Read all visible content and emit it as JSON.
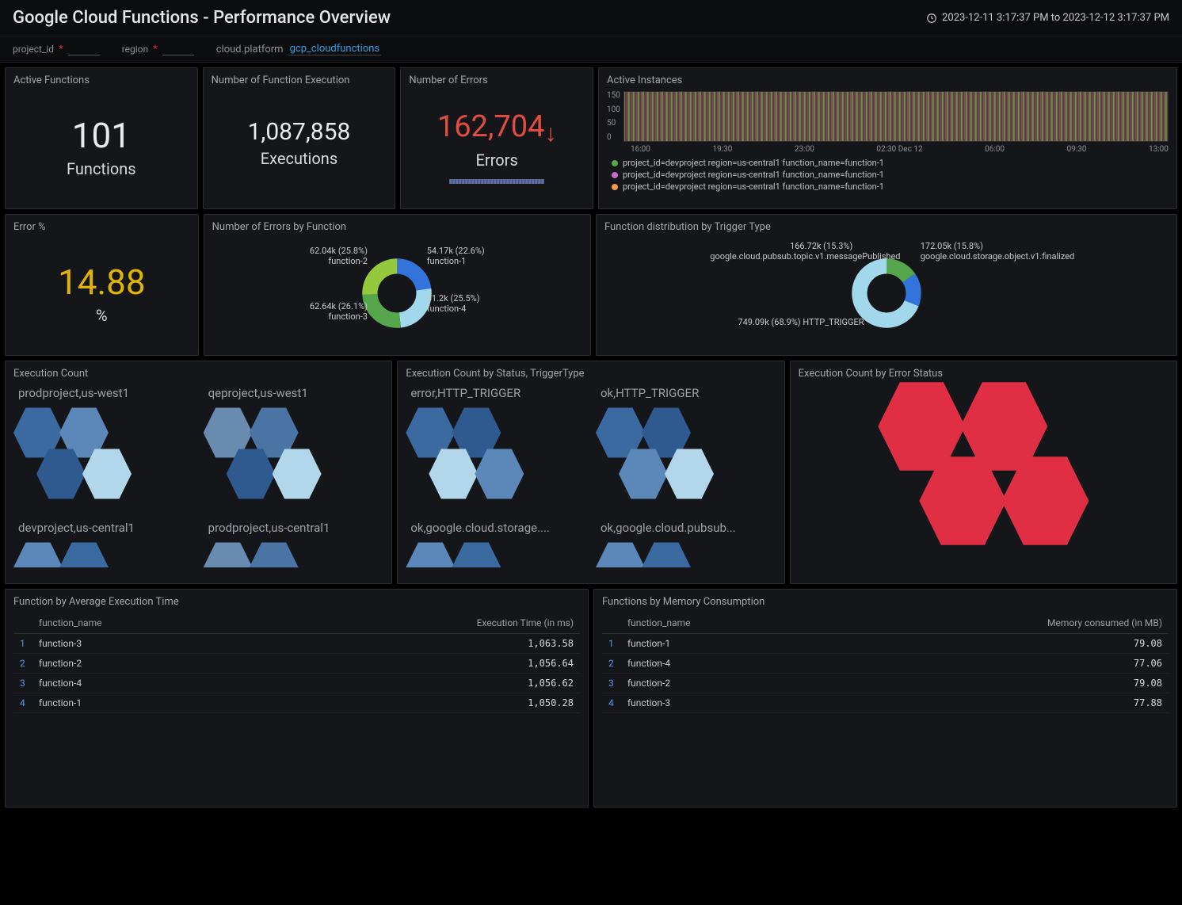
{
  "header": {
    "title": "Google Cloud Functions - Performance Overview",
    "time_range": "2023-12-11 3:17:37 PM to 2023-12-12 3:17:37 PM"
  },
  "filters": {
    "project_id_label": "project_id",
    "region_label": "region",
    "platform_label": "cloud.platform",
    "platform_value": "gcp_cloudfunctions",
    "star": "*"
  },
  "panels": {
    "active_functions": {
      "title": "Active Functions",
      "value": "101",
      "unit": "Functions"
    },
    "executions": {
      "title": "Number of Function Execution",
      "value": "1,087,858",
      "unit": "Executions"
    },
    "errors": {
      "title": "Number of Errors",
      "value": "162,704",
      "unit": "Errors",
      "value_color": "#e24d42"
    },
    "error_pct": {
      "title": "Error %",
      "value": "14.88",
      "unit": "%",
      "value_color": "#e0b400"
    },
    "active_instances": {
      "title": "Active Instances",
      "y_ticks": [
        "150",
        "100",
        "50",
        "0"
      ],
      "x_ticks": [
        "16:00",
        "19:30",
        "23:00",
        "02:30 Dec 12",
        "06:00",
        "09:30",
        "13:00"
      ],
      "legend": [
        {
          "color": "#56a64b",
          "text": "project_id=devproject region=us-central1 function_name=function-1"
        },
        {
          "color": "#c869c8",
          "text": "project_id=devproject region=us-central1 function_name=function-1"
        },
        {
          "color": "#f2994a",
          "text": "project_id=devproject region=us-central1 function_name=function-1"
        }
      ]
    },
    "errors_by_fn": {
      "title": "Number of Errors by Function",
      "slices": [
        {
          "label_top": "54.17k (22.6%)",
          "label_bot": "function-1",
          "pct": 22.6,
          "color": "#3274d9"
        },
        {
          "label_top": "61.2k (25.5%)",
          "label_bot": "function-4",
          "pct": 25.5,
          "color": "#a2d8ec"
        },
        {
          "label_top": "62.64k (26.1%)",
          "label_bot": "function-3",
          "pct": 26.1,
          "color": "#56a64b"
        },
        {
          "label_top": "62.04k (25.8%)",
          "label_bot": "function-2",
          "pct": 25.8,
          "color": "#95c93d"
        }
      ]
    },
    "trigger_dist": {
      "title": "Function distribution by Trigger Type",
      "slices": [
        {
          "label_top": "166.72k (15.3%)",
          "label_bot": "google.cloud.pubsub.topic.v1.messagePublished",
          "pct": 15.3,
          "color": "#56a64b"
        },
        {
          "label_top": "172.05k (15.8%)",
          "label_bot": "google.cloud.storage.object.v1.finalized",
          "pct": 15.8,
          "color": "#3274d9"
        },
        {
          "label_top": "749.09k (68.9%) HTTP_TRIGGER",
          "label_bot": "",
          "pct": 68.9,
          "color": "#a2d8ec"
        }
      ]
    },
    "exec_count": {
      "title": "Execution Count",
      "groups": [
        {
          "title": "prodproject,us-west1",
          "colors": [
            "#3a6aa0",
            "#5b88b8",
            "#2f5a8f",
            "#b3d7ea"
          ]
        },
        {
          "title": "qeproject,us-west1",
          "colors": [
            "#6a8bb0",
            "#4a74a3",
            "#2f5a8f",
            "#b3d7ea"
          ]
        },
        {
          "title": "devproject,us-central1",
          "colors": [
            "#5b88b8",
            "#3a6aa0"
          ],
          "partial": true
        },
        {
          "title": "prodproject,us-central1",
          "colors": [
            "#6a8bb0",
            "#4a74a3"
          ],
          "partial": true
        }
      ]
    },
    "exec_by_status": {
      "title": "Execution Count by Status, TriggerType",
      "groups": [
        {
          "title": "error,HTTP_TRIGGER",
          "colors": [
            "#3a6aa0",
            "#2f5a8f",
            "#b3d7ea",
            "#5b88b8"
          ]
        },
        {
          "title": "ok,HTTP_TRIGGER",
          "colors": [
            "#3a6aa0",
            "#2f5a8f",
            "#5b88b8",
            "#b3d7ea"
          ]
        },
        {
          "title": "ok,google.cloud.storage....",
          "colors": [
            "#5b88b8",
            "#3a6aa0"
          ],
          "partial": true
        },
        {
          "title": "ok,google.cloud.pubsub...",
          "colors": [
            "#5b88b8",
            "#3a6aa0"
          ],
          "partial": true
        }
      ]
    },
    "exec_by_error_status": {
      "title": "Execution Count by Error Status",
      "color": "#e02f44"
    },
    "avg_exec_time": {
      "title": "Function by Average Execution Time",
      "col_fn": "function_name",
      "col_val": "Execution Time (in ms)",
      "rows": [
        {
          "idx": "1",
          "fn": "function-3",
          "val": "1,063.58"
        },
        {
          "idx": "2",
          "fn": "function-2",
          "val": "1,056.64"
        },
        {
          "idx": "3",
          "fn": "function-4",
          "val": "1,056.62"
        },
        {
          "idx": "4",
          "fn": "function-1",
          "val": "1,050.28"
        }
      ]
    },
    "memory": {
      "title": "Functions by Memory Consumption",
      "col_fn": "function_name",
      "col_val": "Memory consumed (in MB)",
      "rows": [
        {
          "idx": "1",
          "fn": "function-1",
          "val": "79.08"
        },
        {
          "idx": "2",
          "fn": "function-4",
          "val": "77.06"
        },
        {
          "idx": "3",
          "fn": "function-2",
          "val": "79.08"
        },
        {
          "idx": "4",
          "fn": "function-3",
          "val": "77.88"
        }
      ]
    }
  }
}
